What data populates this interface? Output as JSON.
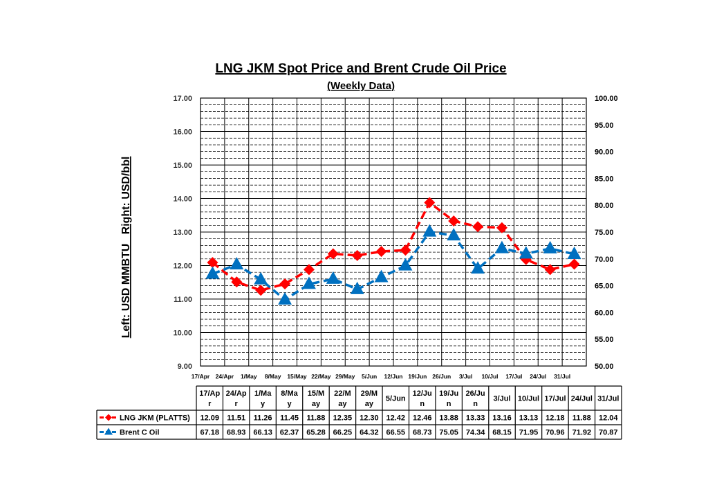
{
  "chart_data": {
    "type": "line",
    "title": "LNG JKM Spot Price and Brent Crude Oil Price",
    "subtitle": "(Weekly Data)",
    "ylabel": "Left: USD MMBTU   Right: USD/bbl",
    "y_left": {
      "min": 9.0,
      "max": 17.0,
      "ticks": [
        "9.00",
        "10.00",
        "11.00",
        "12.00",
        "13.00",
        "14.00",
        "15.00",
        "16.00",
        "17.00"
      ]
    },
    "y_right": {
      "min": 50.0,
      "max": 100.0,
      "ticks": [
        "50.00",
        "55.00",
        "60.00",
        "65.00",
        "70.00",
        "75.00",
        "80.00",
        "85.00",
        "90.00",
        "95.00",
        "100.00"
      ]
    },
    "categories": [
      "17/Apr",
      "24/Apr",
      "1/May",
      "8/May",
      "15/May",
      "22/May",
      "29/May",
      "5/Jun",
      "12/Jun",
      "19/Jun",
      "26/Jun",
      "3/Jul",
      "10/Jul",
      "17/Jul",
      "24/Jul",
      "31/Jul"
    ],
    "table_headers": [
      "17/Ap\nr",
      "24/Ap\nr",
      "1/Ma\ny",
      "8/Ma\ny",
      "15/M\nay",
      "22/M\nay",
      "29/M\nay",
      "5/Jun",
      "12/Ju\nn",
      "19/Ju\nn",
      "26/Ju\nn",
      "3/Jul",
      "10/Jul",
      "17/Jul",
      "24/Jul",
      "31/Jul"
    ],
    "series": [
      {
        "name": "LNG JKM (PLATTS)",
        "axis": "left",
        "color": "#ff0000",
        "marker": "diamond",
        "values": [
          12.09,
          11.51,
          11.26,
          11.45,
          11.88,
          12.35,
          12.3,
          12.42,
          12.46,
          13.88,
          13.33,
          13.16,
          13.13,
          12.18,
          11.88,
          12.04
        ],
        "labels": [
          "12.09",
          "11.51",
          "11.26",
          "11.45",
          "11.88",
          "12.35",
          "12.30",
          "12.42",
          "12.46",
          "13.88",
          "13.33",
          "13.16",
          "13.13",
          "12.18",
          "11.88",
          "12.04"
        ]
      },
      {
        "name": "Brent C Oil",
        "axis": "right",
        "color": "#0070c0",
        "marker": "triangle",
        "values": [
          67.18,
          68.93,
          66.13,
          62.37,
          65.28,
          66.25,
          64.32,
          66.55,
          68.73,
          75.05,
          74.34,
          68.15,
          71.95,
          70.96,
          71.92,
          70.87
        ],
        "labels": [
          "67.18",
          "68.93",
          "66.13",
          "62.37",
          "65.28",
          "66.25",
          "64.32",
          "66.55",
          "68.73",
          "75.05",
          "74.34",
          "68.15",
          "71.95",
          "70.96",
          "71.92",
          "70.87"
        ]
      }
    ],
    "grid": true,
    "legend": "data-table"
  }
}
